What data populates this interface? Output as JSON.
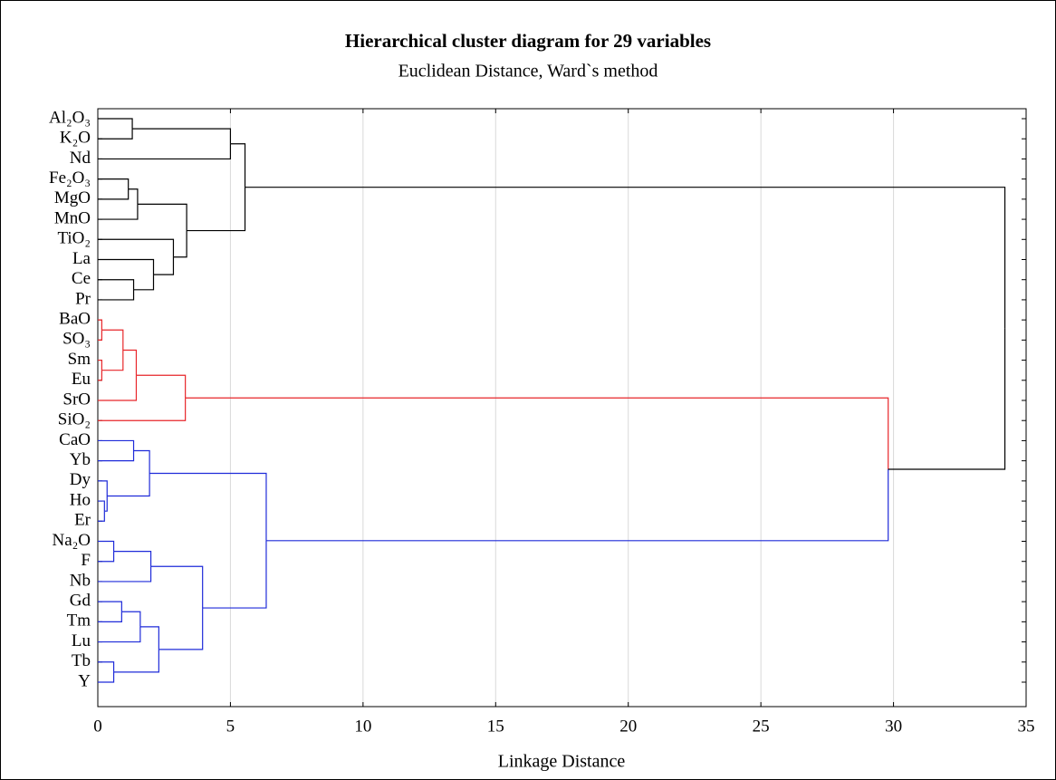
{
  "chart_data": {
    "type": "dendrogram",
    "title": "Hierarchical cluster diagram for 29 variables",
    "subtitle": "Euclidean Distance, Ward`s method",
    "x_label": "Linkage Distance",
    "categories": [
      "Al₂O₃",
      "K₂O",
      "Nd",
      "Fe₂O₃",
      "MgO",
      "MnO",
      "TiO₂",
      "La",
      "Ce",
      "Pr",
      "BaO",
      "SO₃",
      "Sm",
      "Eu",
      "SrO",
      "SiO₂",
      "CaO",
      "Yb",
      "Dy",
      "Ho",
      "Er",
      "Na₂O",
      "F",
      "Nb",
      "Gd",
      "Tm",
      "Lu",
      "Tb",
      "Y"
    ],
    "merges": [
      {
        "children": [
          0,
          1
        ],
        "height": 1.3,
        "color": "#000000"
      },
      {
        "children": [
          29,
          2
        ],
        "height": 5.0,
        "color": "#000000"
      },
      {
        "children": [
          3,
          4
        ],
        "height": 1.15,
        "color": "#000000"
      },
      {
        "children": [
          31,
          5
        ],
        "height": 1.5,
        "color": "#000000"
      },
      {
        "children": [
          8,
          9
        ],
        "height": 1.35,
        "color": "#000000"
      },
      {
        "children": [
          7,
          33
        ],
        "height": 2.1,
        "color": "#000000"
      },
      {
        "children": [
          6,
          34
        ],
        "height": 2.85,
        "color": "#000000"
      },
      {
        "children": [
          32,
          35
        ],
        "height": 3.35,
        "color": "#000000"
      },
      {
        "children": [
          30,
          36
        ],
        "height": 5.55,
        "color": "#000000"
      },
      {
        "children": [
          10,
          11
        ],
        "height": 0.15,
        "color": "#e8262a"
      },
      {
        "children": [
          12,
          13
        ],
        "height": 0.15,
        "color": "#e8262a"
      },
      {
        "children": [
          38,
          39
        ],
        "height": 0.95,
        "color": "#e8262a"
      },
      {
        "children": [
          40,
          14
        ],
        "height": 1.45,
        "color": "#e8262a"
      },
      {
        "children": [
          41,
          15
        ],
        "height": 3.3,
        "color": "#e8262a"
      },
      {
        "children": [
          16,
          17
        ],
        "height": 1.35,
        "color": "#1f2bd9"
      },
      {
        "children": [
          19,
          20
        ],
        "height": 0.25,
        "color": "#1f2bd9"
      },
      {
        "children": [
          18,
          44
        ],
        "height": 0.35,
        "color": "#1f2bd9"
      },
      {
        "children": [
          43,
          45
        ],
        "height": 1.95,
        "color": "#1f2bd9"
      },
      {
        "children": [
          21,
          22
        ],
        "height": 0.6,
        "color": "#1f2bd9"
      },
      {
        "children": [
          47,
          23
        ],
        "height": 2.0,
        "color": "#1f2bd9"
      },
      {
        "children": [
          24,
          25
        ],
        "height": 0.9,
        "color": "#1f2bd9"
      },
      {
        "children": [
          49,
          26
        ],
        "height": 1.6,
        "color": "#1f2bd9"
      },
      {
        "children": [
          27,
          28
        ],
        "height": 0.6,
        "color": "#1f2bd9"
      },
      {
        "children": [
          50,
          51
        ],
        "height": 2.3,
        "color": "#1f2bd9"
      },
      {
        "children": [
          48,
          52
        ],
        "height": 3.95,
        "color": "#1f2bd9"
      },
      {
        "children": [
          46,
          53
        ],
        "height": 6.35,
        "color": "#1f2bd9"
      },
      {
        "children": [
          42,
          54
        ],
        "height": 29.8,
        "color": "#000000"
      },
      {
        "children": [
          37,
          55
        ],
        "height": 34.2,
        "color": "#000000"
      }
    ],
    "xlim": [
      0,
      35
    ],
    "xticks": [
      0,
      5,
      10,
      15,
      20,
      25,
      30,
      35
    ],
    "grid": true
  }
}
